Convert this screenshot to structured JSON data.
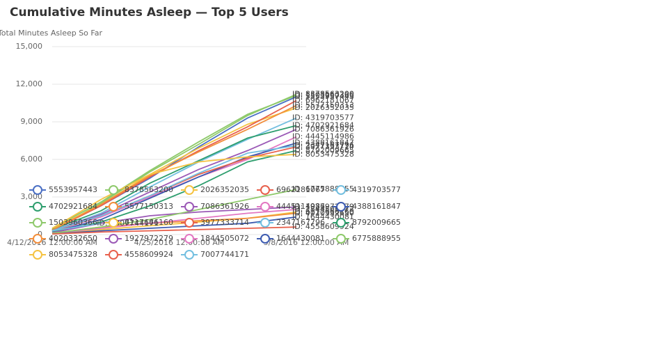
{
  "chart_data": {
    "type": "line",
    "title": "Cumulative Minutes Asleep — Top 5 Users",
    "y_label": "Total Minutes Asleep So Far",
    "x": [
      "4/12/2016 12:00:00 AM",
      "4/17/2016 12:00:00 AM",
      "4/22/2016 12:00:00 AM",
      "4/27/2016 12:00:00 AM",
      "5/2/2016 12:00:00 AM",
      "5/7/2016 12:00:00 AM"
    ],
    "xlim": [
      "4/12/2016 12:00:00 AM",
      "5/8/2016 12:00:00 AM"
    ],
    "xticks": [
      "4/12/2016 12:00:00 AM",
      "4/25/2016 12:00:00 AM",
      "5/8/2016 12:00:00 AM"
    ],
    "ylim": [
      0,
      15000
    ],
    "yticks": [
      {
        "value": 0,
        "label": "0"
      },
      {
        "value": 3000,
        "label": "3,000"
      },
      {
        "value": 6000,
        "label": "6,000"
      },
      {
        "value": 9000,
        "label": "9,000"
      },
      {
        "value": 12000,
        "label": "12,000"
      },
      {
        "value": 15000,
        "label": "15,000"
      }
    ],
    "grid": true,
    "series": [
      {
        "name": "5553957443",
        "label": "ID: 5553957443",
        "color": "#4a6fc4",
        "values": [
          400,
          2300,
          4500,
          7000,
          9300,
          11000
        ]
      },
      {
        "name": "8378563200",
        "label": "ID: 8378563200",
        "color": "#8ec96b",
        "values": [
          300,
          2500,
          5000,
          7200,
          9500,
          11200
        ]
      },
      {
        "name": "2026352035",
        "label": "ID: 2026352035",
        "color": "#f5c342",
        "values": [
          450,
          2400,
          4800,
          6900,
          8800,
          10100
        ]
      },
      {
        "name": "6962181067",
        "label": "ID: 6962181067",
        "color": "#e8604c",
        "values": [
          350,
          2300,
          4600,
          6700,
          8600,
          10700
        ]
      },
      {
        "name": "4319703577",
        "label": "ID: 4319703577",
        "color": "#73bfe0",
        "values": [
          300,
          1700,
          3800,
          5800,
          7600,
          9300
        ]
      },
      {
        "name": "4702921684",
        "label": "ID: 4702921684",
        "color": "#2e9e6e",
        "values": [
          400,
          1900,
          4100,
          5900,
          7700,
          8700
        ]
      },
      {
        "name": "5577150313",
        "label": "ID: 5577150313",
        "color": "#f28e3c",
        "values": [
          350,
          2400,
          4700,
          6600,
          8400,
          10300
        ]
      },
      {
        "name": "7086361926",
        "label": "ID: 7086361926",
        "color": "#9b59b6",
        "values": [
          300,
          1600,
          3400,
          5200,
          6700,
          8400
        ]
      },
      {
        "name": "4445114986",
        "label": "ID: 4445114986",
        "color": "#e377c2",
        "values": [
          250,
          1400,
          3000,
          4600,
          6000,
          7800
        ]
      },
      {
        "name": "4388161847",
        "label": "ID: 4388161847",
        "color": "#3d5bb0",
        "values": [
          200,
          1200,
          2900,
          4600,
          6200,
          7300
        ]
      },
      {
        "name": "1503960366",
        "label": "ID: 1503960366",
        "color": "#8ec96b",
        "values": [
          500,
          2600,
          5100,
          7400,
          9600,
          11100
        ]
      },
      {
        "name": "6117666160",
        "label": "ID: 6117666160",
        "color": "#f5c342",
        "values": [
          100,
          400,
          700,
          1000,
          1300,
          1800
        ]
      },
      {
        "name": "3977333714",
        "label": "ID: 3977333714",
        "color": "#e8604c",
        "values": [
          250,
          1500,
          3100,
          4800,
          6100,
          7000
        ]
      },
      {
        "name": "2347167796",
        "label": "ID: 2347167796",
        "color": "#73bfe0",
        "values": [
          300,
          1500,
          3100,
          4900,
          6500,
          7100
        ]
      },
      {
        "name": "8792009665",
        "label": "ID: 8792009665",
        "color": "#2e9e6e",
        "values": [
          200,
          1000,
          2300,
          3900,
          5800,
          6700
        ]
      },
      {
        "name": "4020332650",
        "label": "ID: 4020332650",
        "color": "#f28e3c",
        "values": [
          100,
          600,
          900,
          1100,
          1300,
          1700
        ]
      },
      {
        "name": "1927972279",
        "label": "ID: 1927972279",
        "color": "#9b59b6",
        "values": [
          150,
          900,
          1500,
          1800,
          2000,
          2200
        ]
      },
      {
        "name": "1844505072",
        "label": "ID: 1844505072",
        "color": "#e377c2",
        "values": [
          100,
          500,
          900,
          1300,
          1700,
          2000
        ]
      },
      {
        "name": "1644430081",
        "label": "ID: 1644430081",
        "color": "#3d5bb0",
        "values": [
          50,
          300,
          500,
          700,
          900,
          1400
        ]
      },
      {
        "name": "6775888955",
        "label": "ID: 6775888955",
        "color": "#8ec96b",
        "values": [
          100,
          600,
          1200,
          2000,
          2800,
          3600
        ]
      },
      {
        "name": "8053475328",
        "label": "ID: 8053475328",
        "color": "#f5c342",
        "values": [
          500,
          2800,
          4800,
          5800,
          6200,
          6400
        ]
      },
      {
        "name": "4558609924",
        "label": "ID: 4558609924",
        "color": "#e8604c",
        "values": [
          50,
          200,
          300,
          400,
          500,
          600
        ]
      },
      {
        "name": "7007744171",
        "label": "ID: 7007744171",
        "color": "#73bfe0",
        "values": [
          300,
          900,
          null,
          null,
          null,
          null
        ]
      }
    ]
  }
}
